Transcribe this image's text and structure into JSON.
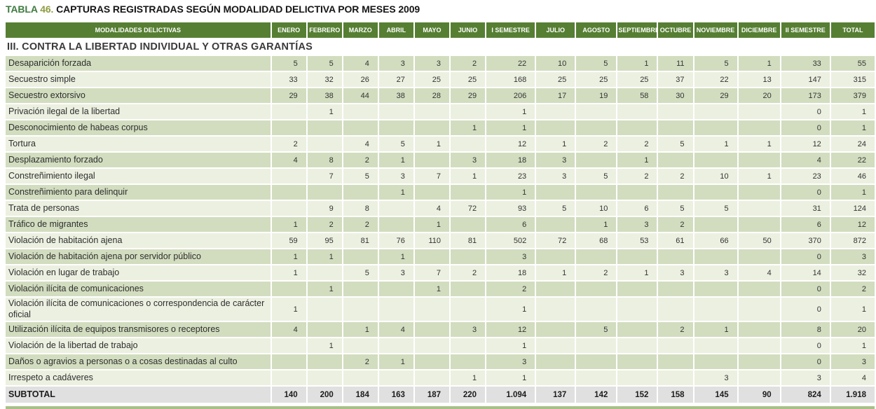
{
  "title": {
    "prefix": "TABLA",
    "number": "46.",
    "text": " CAPTURAS REGISTRADAS SEGÚN MODALIDAD DELICTIVA POR MESES 2009"
  },
  "colors": {
    "header_green": "#567f33",
    "row_dark": "#d2ddc0",
    "row_light": "#ebf0e0",
    "subtotal_bg": "#e0e0e0",
    "title_green": "#3e7b40",
    "title_olive": "#8f9c42"
  },
  "table": {
    "label_header": "MODALIDADES DELICTIVAS",
    "columns": [
      "ENERO",
      "FEBRERO",
      "MARZO",
      "ABRIL",
      "MAYO",
      "JUNIO",
      "I SEMESTRE",
      "JULIO",
      "AGOSTO",
      "SEPTIEMBRE",
      "OCTUBRE",
      "NOVIEMBRE",
      "DICIEMBRE",
      "II SEMESTRE",
      "TOTAL"
    ],
    "section": "III. CONTRA LA LIBERTAD INDIVIDUAL Y OTRAS GARANTÍAS",
    "rows": [
      {
        "label": "Desaparición forzada",
        "values": [
          "5",
          "5",
          "4",
          "3",
          "3",
          "2",
          "22",
          "10",
          "5",
          "1",
          "11",
          "5",
          "1",
          "33",
          "55"
        ]
      },
      {
        "label": "Secuestro simple",
        "values": [
          "33",
          "32",
          "26",
          "27",
          "25",
          "25",
          "168",
          "25",
          "25",
          "25",
          "37",
          "22",
          "13",
          "147",
          "315"
        ]
      },
      {
        "label": "Secuestro extorsivo",
        "values": [
          "29",
          "38",
          "44",
          "38",
          "28",
          "29",
          "206",
          "17",
          "19",
          "58",
          "30",
          "29",
          "20",
          "173",
          "379"
        ]
      },
      {
        "label": "Privación ilegal de la libertad",
        "values": [
          "",
          "1",
          "",
          "",
          "",
          "",
          "1",
          "",
          "",
          "",
          "",
          "",
          "",
          "0",
          "1"
        ]
      },
      {
        "label": "Desconocimiento de habeas corpus",
        "values": [
          "",
          "",
          "",
          "",
          "",
          "1",
          "1",
          "",
          "",
          "",
          "",
          "",
          "",
          "0",
          "1"
        ]
      },
      {
        "label": "Tortura",
        "values": [
          "2",
          "",
          "4",
          "5",
          "1",
          "",
          "12",
          "1",
          "2",
          "2",
          "5",
          "1",
          "1",
          "12",
          "24"
        ]
      },
      {
        "label": "Desplazamiento forzado",
        "values": [
          "4",
          "8",
          "2",
          "1",
          "",
          "3",
          "18",
          "3",
          "",
          "1",
          "",
          "",
          "",
          "4",
          "22"
        ]
      },
      {
        "label": "Constreñimiento ilegal",
        "values": [
          "",
          "7",
          "5",
          "3",
          "7",
          "1",
          "23",
          "3",
          "5",
          "2",
          "2",
          "10",
          "1",
          "23",
          "46"
        ]
      },
      {
        "label": "Constreñimiento para delinquir",
        "values": [
          "",
          "",
          "",
          "1",
          "",
          "",
          "1",
          "",
          "",
          "",
          "",
          "",
          "",
          "0",
          "1"
        ]
      },
      {
        "label": "Trata de personas",
        "values": [
          "",
          "9",
          "8",
          "",
          "4",
          "72",
          "93",
          "5",
          "10",
          "6",
          "5",
          "5",
          "",
          "31",
          "124"
        ]
      },
      {
        "label": "Tráfico de migrantes",
        "values": [
          "1",
          "2",
          "2",
          "",
          "1",
          "",
          "6",
          "",
          "1",
          "3",
          "2",
          "",
          "",
          "6",
          "12"
        ]
      },
      {
        "label": "Violación de habitación ajena",
        "values": [
          "59",
          "95",
          "81",
          "76",
          "110",
          "81",
          "502",
          "72",
          "68",
          "53",
          "61",
          "66",
          "50",
          "370",
          "872"
        ]
      },
      {
        "label": "Violación de habitación ajena por servidor público",
        "values": [
          "1",
          "1",
          "",
          "1",
          "",
          "",
          "3",
          "",
          "",
          "",
          "",
          "",
          "",
          "0",
          "3"
        ]
      },
      {
        "label": "Violación en lugar de trabajo",
        "values": [
          "1",
          "",
          "5",
          "3",
          "7",
          "2",
          "18",
          "1",
          "2",
          "1",
          "3",
          "3",
          "4",
          "14",
          "32"
        ]
      },
      {
        "label": "Violación ilícita de comunicaciones",
        "values": [
          "",
          "1",
          "",
          "",
          "1",
          "",
          "2",
          "",
          "",
          "",
          "",
          "",
          "",
          "0",
          "2"
        ]
      },
      {
        "label": "Violación ilícita de comunicaciones o correspondencia de carácter oficial",
        "values": [
          "1",
          "",
          "",
          "",
          "",
          "",
          "1",
          "",
          "",
          "",
          "",
          "",
          "",
          "0",
          "1"
        ]
      },
      {
        "label": "Utilización ilícita de equipos transmisores o receptores",
        "values": [
          "4",
          "",
          "1",
          "4",
          "",
          "3",
          "12",
          "",
          "5",
          "",
          "2",
          "1",
          "",
          "8",
          "20"
        ]
      },
      {
        "label": "Violación de la libertad de trabajo",
        "values": [
          "",
          "1",
          "",
          "",
          "",
          "",
          "1",
          "",
          "",
          "",
          "",
          "",
          "",
          "0",
          "1"
        ]
      },
      {
        "label": "Daños o agravios a personas o a cosas destinadas al culto",
        "values": [
          "",
          "",
          "2",
          "1",
          "",
          "",
          "3",
          "",
          "",
          "",
          "",
          "",
          "",
          "0",
          "3"
        ]
      },
      {
        "label": "Irrespeto a cadáveres",
        "values": [
          "",
          "",
          "",
          "",
          "",
          "1",
          "1",
          "",
          "",
          "",
          "",
          "3",
          "",
          "3",
          "4"
        ]
      }
    ],
    "subtotal": {
      "label": "SUBTOTAL",
      "values": [
        "140",
        "200",
        "184",
        "163",
        "187",
        "220",
        "1.094",
        "137",
        "142",
        "152",
        "158",
        "145",
        "90",
        "824",
        "1.918"
      ]
    }
  }
}
